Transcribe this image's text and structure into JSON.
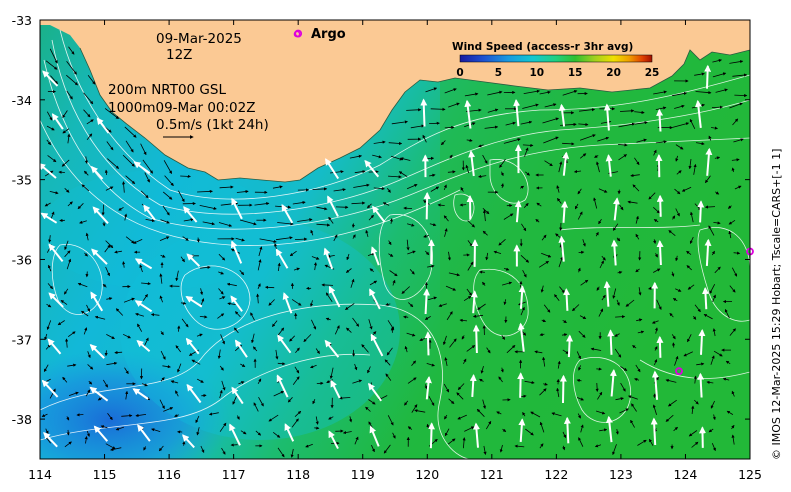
{
  "map": {
    "date": "09-Mar-2025",
    "time": "12Z",
    "depth_line_1": "200m  NRT00 GSL",
    "depth_line_2": "1000m09-Mar 00:02Z",
    "scale_label": "0.5m/s (1kt 24h)",
    "argo_label": "Argo",
    "lon_range": [
      114,
      125
    ],
    "lat_range": [
      -38.5,
      -33
    ],
    "x_ticks": [
      "114",
      "115",
      "116",
      "117",
      "118",
      "119",
      "120",
      "121",
      "122",
      "123",
      "124",
      "125"
    ],
    "y_ticks": [
      "-33",
      "-34",
      "-35",
      "-36",
      "-37",
      "-38"
    ],
    "credit": "© IMOS 12-Mar-2025 15:29 Hobart; Tscale=CARS+[-1 1]"
  },
  "colorbar": {
    "title": "Wind Speed (access-r 3hr avg)",
    "ticks": [
      "0",
      "5",
      "10",
      "15",
      "20",
      "25"
    ],
    "colors": [
      "#1a1aa0",
      "#1e50d0",
      "#1a9ae0",
      "#13c8d0",
      "#20d080",
      "#30c030",
      "#a0d020",
      "#f0e000",
      "#f0a000",
      "#e04000",
      "#a01000"
    ]
  },
  "argo_floats": [
    {
      "lon": 118.0,
      "lat": -33.17
    },
    {
      "lon": 125.0,
      "lat": -35.9
    },
    {
      "lon": 123.9,
      "lat": -37.4
    }
  ],
  "colors": {
    "land": "#fbc994",
    "ocean_blue": "#1aa8e0",
    "ocean_green": "#22b840",
    "argo": "#dd00dd"
  }
}
